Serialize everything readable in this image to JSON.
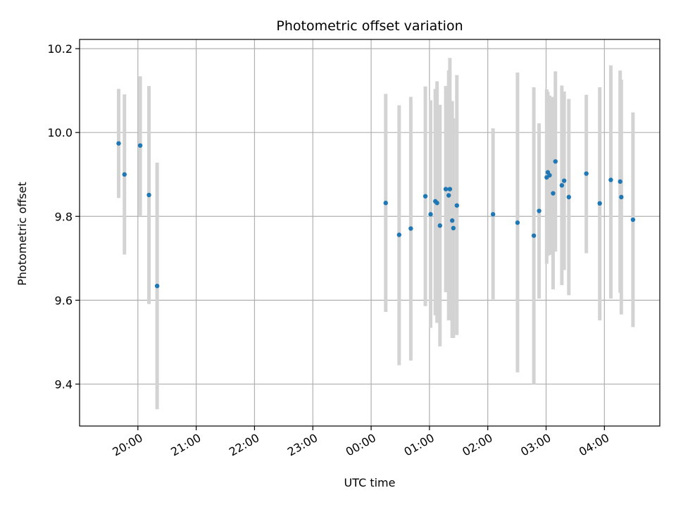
{
  "chart_data": {
    "type": "scatter",
    "title": "Photometric offset variation",
    "xlabel": "UTC time",
    "ylabel": "Photometric offset",
    "x_unit": "hours (UTC, continuing past midnight)",
    "xlim": [
      19.0,
      28.95
    ],
    "ylim": [
      9.3,
      10.222
    ],
    "grid": true,
    "x_ticks": [
      {
        "value": 20,
        "label": "20:00"
      },
      {
        "value": 21,
        "label": "21:00"
      },
      {
        "value": 22,
        "label": "22:00"
      },
      {
        "value": 23,
        "label": "23:00"
      },
      {
        "value": 24,
        "label": "00:00"
      },
      {
        "value": 25,
        "label": "01:00"
      },
      {
        "value": 26,
        "label": "02:00"
      },
      {
        "value": 27,
        "label": "03:00"
      },
      {
        "value": 28,
        "label": "04:00"
      }
    ],
    "y_ticks": [
      {
        "value": 9.4,
        "label": "9.4"
      },
      {
        "value": 9.6,
        "label": "9.6"
      },
      {
        "value": 9.8,
        "label": "9.8"
      },
      {
        "value": 10.0,
        "label": "10.0"
      },
      {
        "value": 10.2,
        "label": "10.2"
      }
    ],
    "marker_color": "#1f77b4",
    "errorbar_color": "#d3d3d3",
    "points": [
      {
        "x": 19.67,
        "y": 9.974,
        "err_lo": 9.844,
        "err_hi": 10.104
      },
      {
        "x": 19.77,
        "y": 9.9,
        "err_lo": 9.709,
        "err_hi": 10.091
      },
      {
        "x": 20.04,
        "y": 9.969,
        "err_lo": 9.8,
        "err_hi": 10.134
      },
      {
        "x": 20.19,
        "y": 9.851,
        "err_lo": 9.591,
        "err_hi": 10.111
      },
      {
        "x": 20.33,
        "y": 9.634,
        "err_lo": 9.34,
        "err_hi": 9.928
      },
      {
        "x": 24.25,
        "y": 9.832,
        "err_lo": 9.572,
        "err_hi": 10.092
      },
      {
        "x": 24.48,
        "y": 9.756,
        "err_lo": 9.445,
        "err_hi": 10.065
      },
      {
        "x": 24.68,
        "y": 9.771,
        "err_lo": 9.456,
        "err_hi": 10.085
      },
      {
        "x": 24.93,
        "y": 9.848,
        "err_lo": 9.586,
        "err_hi": 10.11
      },
      {
        "x": 25.02,
        "y": 9.805,
        "err_lo": 9.534,
        "err_hi": 10.077
      },
      {
        "x": 25.1,
        "y": 9.836,
        "err_lo": 9.564,
        "err_hi": 10.104
      },
      {
        "x": 25.13,
        "y": 9.832,
        "err_lo": 9.546,
        "err_hi": 10.122
      },
      {
        "x": 25.18,
        "y": 9.778,
        "err_lo": 9.49,
        "err_hi": 10.066
      },
      {
        "x": 25.28,
        "y": 9.865,
        "err_lo": 9.619,
        "err_hi": 10.111
      },
      {
        "x": 25.33,
        "y": 9.85,
        "err_lo": 9.552,
        "err_hi": 10.148
      },
      {
        "x": 25.35,
        "y": 9.865,
        "err_lo": 9.552,
        "err_hi": 10.178
      },
      {
        "x": 25.39,
        "y": 9.79,
        "err_lo": 9.51,
        "err_hi": 10.075
      },
      {
        "x": 25.41,
        "y": 9.772,
        "err_lo": 9.51,
        "err_hi": 10.034
      },
      {
        "x": 25.47,
        "y": 9.826,
        "err_lo": 9.517,
        "err_hi": 10.137
      },
      {
        "x": 26.09,
        "y": 9.805,
        "err_lo": 9.602,
        "err_hi": 10.01
      },
      {
        "x": 26.51,
        "y": 9.785,
        "err_lo": 9.428,
        "err_hi": 10.143
      },
      {
        "x": 26.79,
        "y": 9.754,
        "err_lo": 9.4,
        "err_hi": 10.108
      },
      {
        "x": 26.88,
        "y": 9.813,
        "err_lo": 9.604,
        "err_hi": 10.022
      },
      {
        "x": 27.01,
        "y": 9.893,
        "err_lo": 9.687,
        "err_hi": 10.103
      },
      {
        "x": 27.03,
        "y": 9.905,
        "err_lo": 9.706,
        "err_hi": 10.097
      },
      {
        "x": 27.06,
        "y": 9.898,
        "err_lo": 9.708,
        "err_hi": 10.088
      },
      {
        "x": 27.12,
        "y": 9.855,
        "err_lo": 9.626,
        "err_hi": 10.085
      },
      {
        "x": 27.16,
        "y": 9.931,
        "err_lo": 9.716,
        "err_hi": 10.146
      },
      {
        "x": 27.27,
        "y": 9.874,
        "err_lo": 9.636,
        "err_hi": 10.112
      },
      {
        "x": 27.31,
        "y": 9.885,
        "err_lo": 9.672,
        "err_hi": 10.098
      },
      {
        "x": 27.39,
        "y": 9.846,
        "err_lo": 9.612,
        "err_hi": 10.08
      },
      {
        "x": 27.69,
        "y": 9.902,
        "err_lo": 9.712,
        "err_hi": 10.09
      },
      {
        "x": 27.92,
        "y": 9.831,
        "err_lo": 9.552,
        "err_hi": 10.108
      },
      {
        "x": 28.11,
        "y": 9.887,
        "err_lo": 9.604,
        "err_hi": 10.16
      },
      {
        "x": 28.27,
        "y": 9.883,
        "err_lo": 9.618,
        "err_hi": 10.148
      },
      {
        "x": 28.29,
        "y": 9.846,
        "err_lo": 9.566,
        "err_hi": 10.126
      },
      {
        "x": 28.49,
        "y": 9.792,
        "err_lo": 9.536,
        "err_hi": 10.048
      }
    ]
  }
}
